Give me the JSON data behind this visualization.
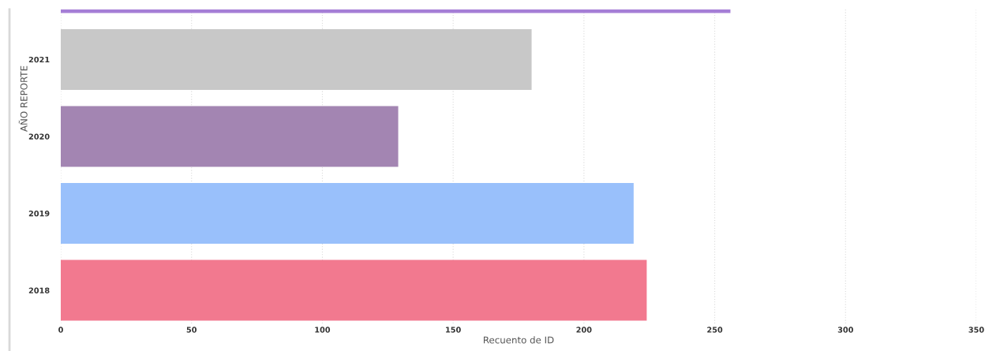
{
  "chart_data": {
    "type": "bar",
    "orientation": "horizontal",
    "categories": [
      null,
      "2021",
      "2020",
      "2019",
      "2018"
    ],
    "values": [
      256,
      180,
      129,
      219,
      224
    ],
    "colors": [
      "#a57ed6",
      "#c8c8c8",
      "#a385b2",
      "#99c0fb",
      "#f2798f"
    ],
    "xlabel": "Recuento de ID",
    "ylabel": "AÑO REPORTE",
    "xlim": [
      0,
      350
    ],
    "xticks": [
      0,
      50,
      100,
      150,
      200,
      250,
      300,
      350
    ],
    "grid": "x"
  }
}
